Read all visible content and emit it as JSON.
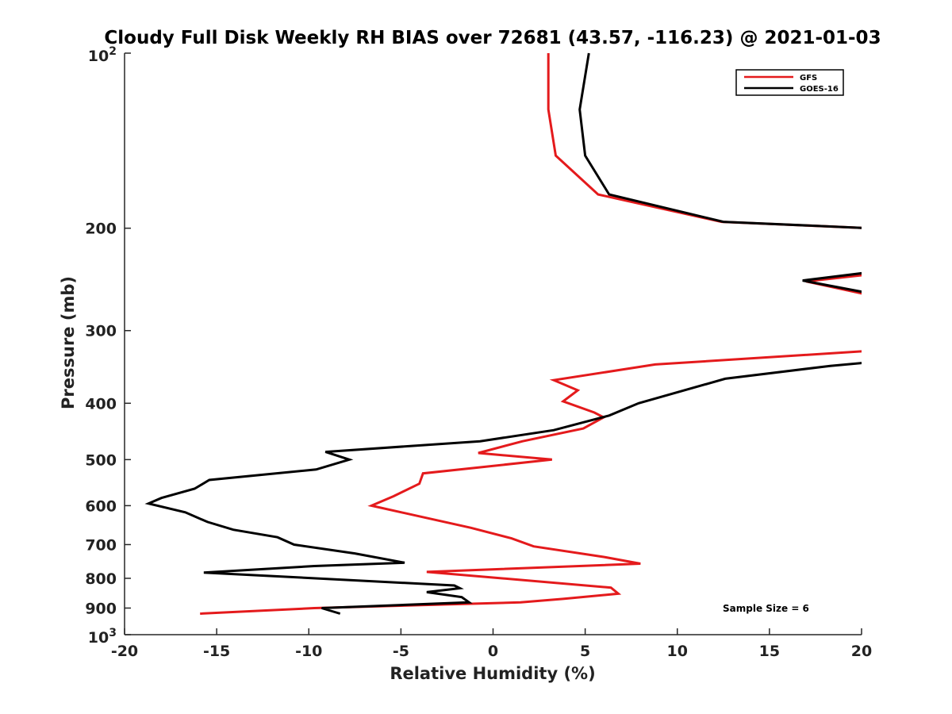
{
  "chart_data": {
    "type": "line",
    "title": "Cloudy Full Disk Weekly RH BIAS over 72681 (43.57, -116.23) @ 2021-01-03",
    "xlabel": "Relative Humidity (%)",
    "ylabel": "Pressure (mb)",
    "xlim": [
      -20,
      20
    ],
    "ylim": [
      100,
      1000
    ],
    "y_scale": "log",
    "y_reversed": true,
    "x_ticks": [
      "-20",
      "-15",
      "-10",
      "-5",
      "0",
      "5",
      "10",
      "15",
      "20"
    ],
    "x_tick_values": [
      -20,
      -15,
      -10,
      -5,
      0,
      5,
      10,
      15,
      20
    ],
    "y_tick_values": [
      100,
      200,
      300,
      400,
      500,
      600,
      700,
      800,
      900,
      1000
    ],
    "y_tick_labels": {
      "plain": [
        "200",
        "300",
        "400",
        "500",
        "600",
        "700",
        "800",
        "900"
      ],
      "top_base": "10",
      "top_exp": "2",
      "bottom_base": "10",
      "bottom_exp": "3"
    },
    "legend": {
      "position": "top-right",
      "entries": [
        "GFS",
        "GOES-16"
      ]
    },
    "annotation": "Sample Size = 6",
    "grid": false,
    "series": [
      {
        "name": "GFS",
        "color": "#e41a1c",
        "points": [
          [
            3.0,
            100
          ],
          [
            3.0,
            125
          ],
          [
            3.4,
            150
          ],
          [
            5.7,
            175
          ],
          [
            12.4,
            195
          ],
          [
            20.5,
            200
          ],
          [
            20.5,
            240
          ],
          [
            17.0,
            247
          ],
          [
            20.5,
            261
          ],
          [
            20.5,
            325
          ],
          [
            8.8,
            343
          ],
          [
            3.3,
            365
          ],
          [
            4.6,
            380
          ],
          [
            3.8,
            397
          ],
          [
            5.5,
            415
          ],
          [
            6.0,
            423
          ],
          [
            4.9,
            442
          ],
          [
            1.6,
            465
          ],
          [
            -0.8,
            487
          ],
          [
            3.2,
            500
          ],
          [
            -3.8,
            528
          ],
          [
            -4.0,
            550
          ],
          [
            -5.4,
            578
          ],
          [
            -6.6,
            600
          ],
          [
            -1.2,
            655
          ],
          [
            1.0,
            683
          ],
          [
            2.2,
            705
          ],
          [
            6.0,
            735
          ],
          [
            8.0,
            755
          ],
          [
            -3.6,
            780
          ],
          [
            6.4,
            830
          ],
          [
            6.8,
            850
          ],
          [
            3.8,
            868
          ],
          [
            1.5,
            880
          ],
          [
            -9.7,
            900
          ],
          [
            -15.9,
            920
          ]
        ]
      },
      {
        "name": "GOES-16",
        "color": "#000000",
        "points": [
          [
            5.2,
            100
          ],
          [
            4.7,
            125
          ],
          [
            5.0,
            150
          ],
          [
            6.3,
            175
          ],
          [
            12.5,
            195
          ],
          [
            20.5,
            200
          ],
          [
            20.5,
            238
          ],
          [
            16.8,
            246
          ],
          [
            20.5,
            259
          ],
          [
            20.5,
            340
          ],
          [
            18.3,
            345
          ],
          [
            12.6,
            363
          ],
          [
            7.9,
            400
          ],
          [
            6.3,
            420
          ],
          [
            3.3,
            445
          ],
          [
            -0.7,
            465
          ],
          [
            -9.1,
            485
          ],
          [
            -7.8,
            500
          ],
          [
            -9.6,
            520
          ],
          [
            -15.4,
            542
          ],
          [
            -16.2,
            561
          ],
          [
            -18.0,
            582
          ],
          [
            -18.7,
            595
          ],
          [
            -16.7,
            616
          ],
          [
            -15.5,
            640
          ],
          [
            -14.1,
            660
          ],
          [
            -11.7,
            680
          ],
          [
            -10.8,
            700
          ],
          [
            -7.5,
            725
          ],
          [
            -4.8,
            752
          ],
          [
            -9.7,
            762
          ],
          [
            -15.7,
            782
          ],
          [
            -2.1,
            823
          ],
          [
            -1.8,
            832
          ],
          [
            -3.6,
            845
          ],
          [
            -1.7,
            862
          ],
          [
            -1.3,
            880
          ],
          [
            -9.3,
            900
          ],
          [
            -8.3,
            920
          ]
        ]
      }
    ]
  }
}
